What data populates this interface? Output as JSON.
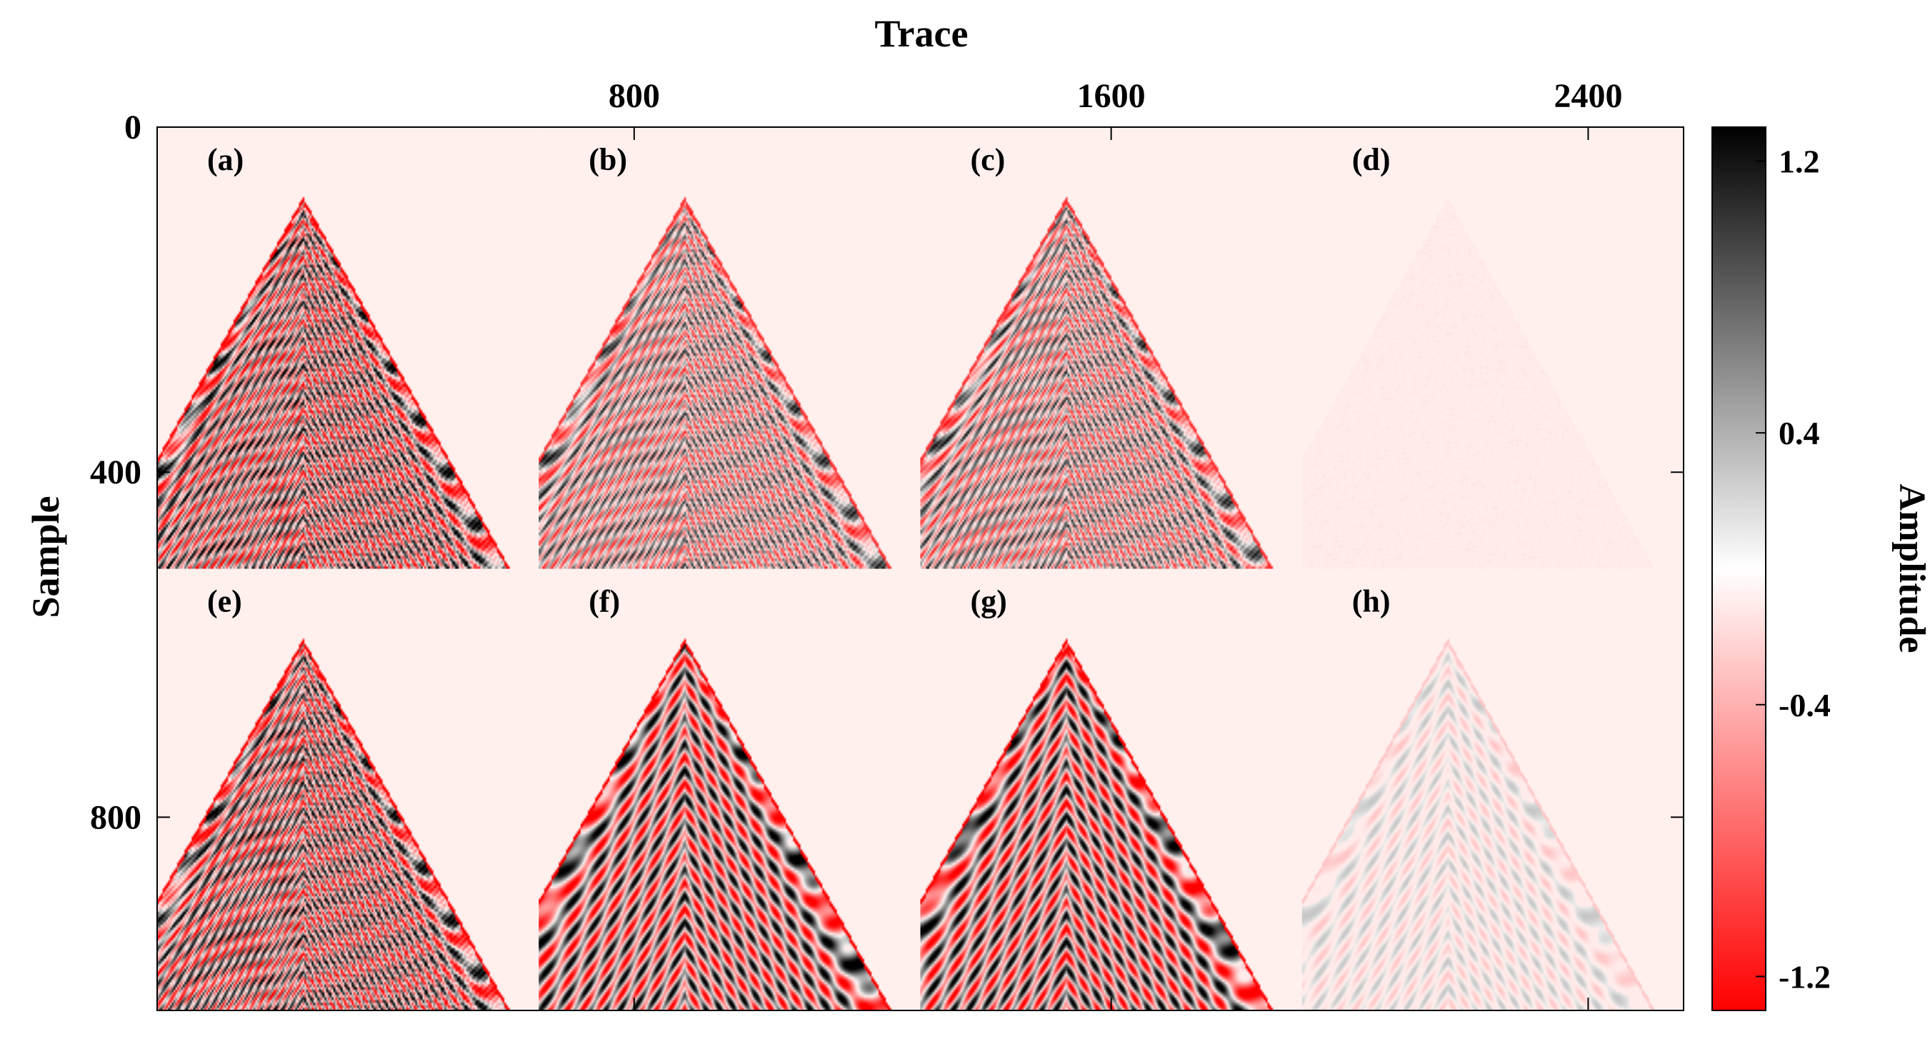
{
  "chart_data": {
    "type": "heatmap",
    "xlabel": "Trace",
    "ylabel": "Sample",
    "x_ticks": [
      {
        "value": 800,
        "label": "800"
      },
      {
        "value": 1600,
        "label": "1600"
      },
      {
        "value": 2400,
        "label": "2400"
      }
    ],
    "y_ticks": [
      {
        "value": 0,
        "label": "0"
      },
      {
        "value": 400,
        "label": "400"
      },
      {
        "value": 800,
        "label": "800"
      }
    ],
    "xlim": [
      0,
      2560
    ],
    "ylim": [
      0,
      1024
    ],
    "panel_grid": {
      "rows": 2,
      "cols": 4,
      "traces_per_panel": 640,
      "samples_per_panel": 512
    },
    "panels": [
      {
        "label": "(a)",
        "row": 0,
        "col": 0,
        "style": "raw",
        "amp": 1.0
      },
      {
        "label": "(b)",
        "row": 0,
        "col": 1,
        "style": "raw",
        "amp": 0.75
      },
      {
        "label": "(c)",
        "row": 0,
        "col": 2,
        "style": "raw",
        "amp": 0.75
      },
      {
        "label": "(d)",
        "row": 0,
        "col": 3,
        "style": "noise",
        "amp": 0.12
      },
      {
        "label": "(e)",
        "row": 1,
        "col": 0,
        "style": "raw",
        "amp": 1.0
      },
      {
        "label": "(f)",
        "row": 1,
        "col": 1,
        "style": "smooth",
        "amp": 1.0
      },
      {
        "label": "(g)",
        "row": 1,
        "col": 2,
        "style": "smooth",
        "amp": 1.0
      },
      {
        "label": "(h)",
        "row": 1,
        "col": 3,
        "style": "smoothfaint",
        "amp": 0.2
      }
    ],
    "apex_sample": 80,
    "colorbar": {
      "label": "Amplitude",
      "min": -1.3,
      "max": 1.3,
      "ticks": [
        {
          "value": 1.2,
          "label": "1.2"
        },
        {
          "value": 0.4,
          "label": "0.4"
        },
        {
          "value": -0.4,
          "label": "-0.4"
        },
        {
          "value": -1.2,
          "label": "-1.2"
        }
      ],
      "colors": {
        "positive": "#000000",
        "zero": "#ffffff",
        "negative": "#ff0000"
      }
    },
    "background_color": "#fff0ee",
    "grid": false
  }
}
